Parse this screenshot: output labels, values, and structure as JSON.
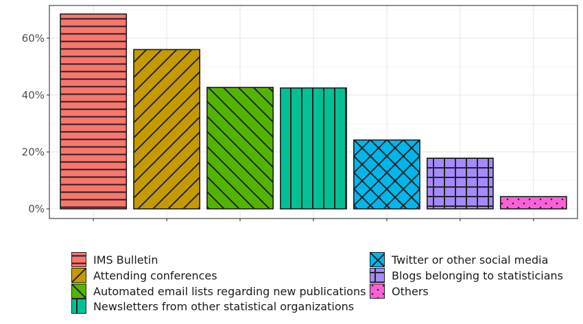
{
  "chart_data": {
    "type": "bar",
    "categories": [
      "IMS Bulletin",
      "Attending conferences",
      "Automated email lists regarding new publications",
      "Newsletters from other statistical organizations",
      "Twitter or other social media",
      "Blogs belonging to statisticians",
      "Others"
    ],
    "values": [
      68.5,
      56,
      42.7,
      42.5,
      24.2,
      17.8,
      4.3
    ],
    "colors": [
      "#F8766D",
      "#C49A00",
      "#53B400",
      "#00C094",
      "#00B6EB",
      "#A58AFF",
      "#FB61D7"
    ],
    "patterns": [
      "horizontal-stripes",
      "diagonal-stripes-ne",
      "diagonal-stripes-nw",
      "vertical-stripes",
      "crosshatch-diagonal",
      "grid",
      "dots"
    ],
    "yticks": [
      "0%",
      "20%",
      "40%",
      "60%"
    ],
    "ytick_values": [
      0,
      20,
      40,
      60
    ],
    "ylim": [
      -3.4,
      71.5
    ],
    "xlabel": "",
    "ylabel": "",
    "title": "",
    "grid": true,
    "legend_position": "bottom"
  },
  "legend": {
    "items": [
      "IMS Bulletin",
      "Attending conferences",
      "Automated email lists regarding new publications",
      "Newsletters from other statistical organizations",
      "Twitter or other social media",
      "Blogs belonging to statisticians",
      "Others"
    ]
  }
}
